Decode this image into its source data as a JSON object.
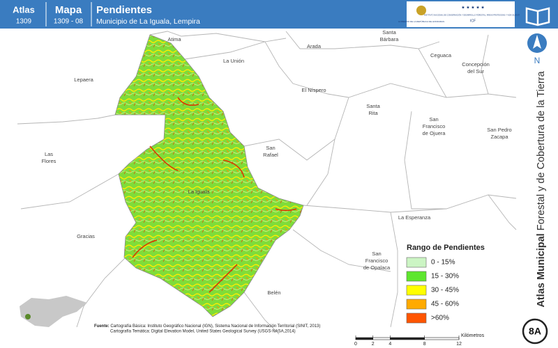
{
  "header": {
    "atlas_label": "Atlas",
    "atlas_number": "1309",
    "map_label": "Mapa",
    "map_number": "1309 - 08",
    "title": "Pendientes",
    "subtitle": "Municipio de La Iguala, Lempira",
    "logos": {
      "government": "GOBIERNO DE LA REPÚBLICA DE HONDURAS",
      "institute": "INSTITUTO NACIONAL DE CONSERVACIÓN Y DESARROLLO FORESTAL, ÁREAS PROTEGIDAS Y VIDA SILVESTRE",
      "acronym": "ICF"
    }
  },
  "side": {
    "north": "N",
    "title_bold": "Atlas Municipal",
    "title_rest": " Forestal y de Cobertura de la Tierra",
    "badge": "8A"
  },
  "places": [
    {
      "lines": [
        "Atima"
      ]
    },
    {
      "lines": [
        "La Unión"
      ]
    },
    {
      "lines": [
        "Arada"
      ]
    },
    {
      "lines": [
        "Santa",
        "Bárbara"
      ]
    },
    {
      "lines": [
        "Ceguaca"
      ]
    },
    {
      "lines": [
        "Concepción",
        "del Sur"
      ]
    },
    {
      "lines": [
        "Lepaera"
      ]
    },
    {
      "lines": [
        "El Níspero"
      ]
    },
    {
      "lines": [
        "Santa",
        "Rita"
      ]
    },
    {
      "lines": [
        "San",
        "Francisco",
        "de Ojuera"
      ]
    },
    {
      "lines": [
        "San Pedro",
        "Zacapa"
      ]
    },
    {
      "lines": [
        "Las",
        "Flores"
      ]
    },
    {
      "lines": [
        "San",
        "Rafael"
      ]
    },
    {
      "lines": [
        "La Iguala"
      ]
    },
    {
      "lines": [
        "Gracias"
      ]
    },
    {
      "lines": [
        "La Esperanza"
      ]
    },
    {
      "lines": [
        "San",
        "Francisco",
        "de Opalaca"
      ]
    },
    {
      "lines": [
        "Belén"
      ]
    }
  ],
  "legend": {
    "title": "Rango de Pendientes",
    "items": [
      {
        "label": "0 - 15%",
        "color": "#ccf5c4"
      },
      {
        "label": "15 - 30%",
        "color": "#5ee62e"
      },
      {
        "label": "30 - 45%",
        "color": "#ffff00"
      },
      {
        "label": "45 - 60%",
        "color": "#ffaa00"
      },
      {
        "label": ">60%",
        "color": "#ff5500"
      }
    ]
  },
  "source": {
    "label": "Fuente:",
    "line1": " Cartografía Básica: Instituto Geográfico Nacional (IGN), Sistema Nacional de Información Territorial (SINIT, 2013)",
    "line2": "Cartografía Temática: Digital Elevation Model, United States Geological Survey (USGS-NASA,2014)"
  },
  "scale": {
    "ticks": [
      0,
      2,
      4,
      8,
      12
    ],
    "unit": "Kilómetros"
  }
}
